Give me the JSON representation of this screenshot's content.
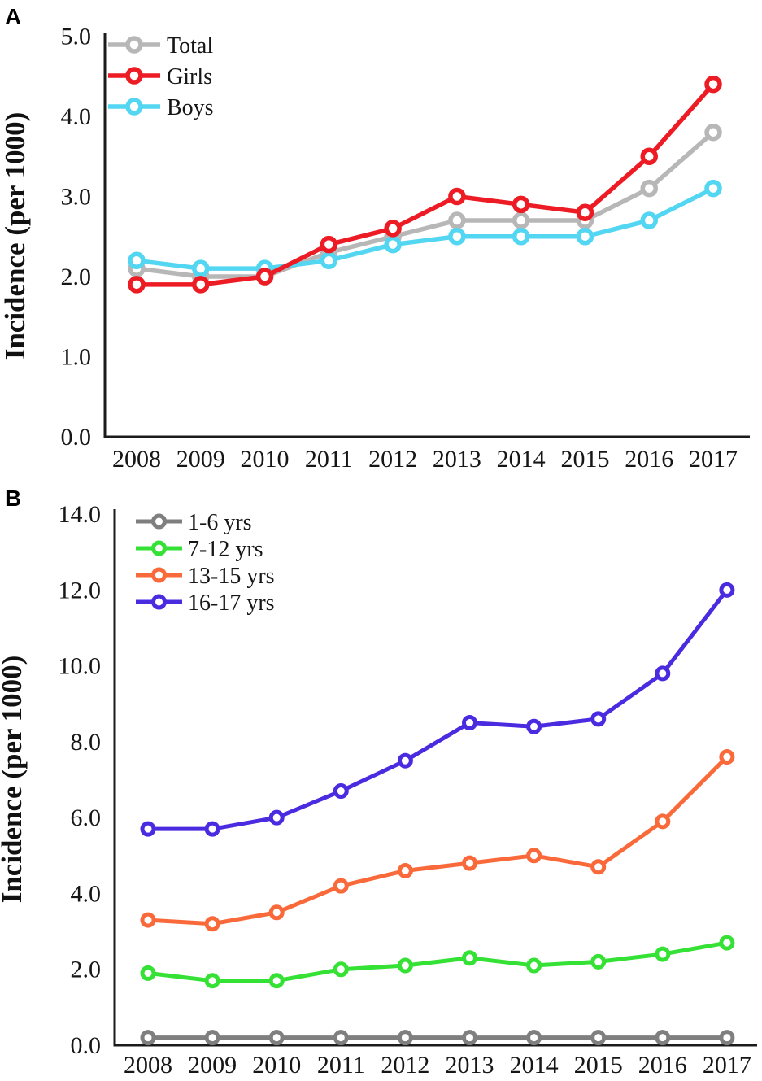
{
  "figure": {
    "panel_a": {
      "label": "A"
    },
    "panel_b": {
      "label": "B"
    }
  },
  "chart_data": [
    {
      "type": "line",
      "panel": "A",
      "title": "",
      "xlabel": "",
      "ylabel": "Incidence (per 1000)",
      "ylim": [
        0.0,
        5.0
      ],
      "ytick_step": 1.0,
      "ytick_values": [
        0,
        1,
        2,
        3,
        4,
        5
      ],
      "ytick_labels": [
        "0.0",
        "1.0",
        "2.0",
        "3.0",
        "4.0",
        "5.0"
      ],
      "categories": [
        "2008",
        "2009",
        "2010",
        "2011",
        "2012",
        "2013",
        "2014",
        "2015",
        "2016",
        "2017"
      ],
      "grid": false,
      "legend_position": "top-left",
      "marker": "open-circle",
      "series": [
        {
          "name": "Total",
          "color": "#b7b7b7",
          "values": [
            2.1,
            2.0,
            2.0,
            2.3,
            2.5,
            2.7,
            2.7,
            2.7,
            3.1,
            3.8
          ]
        },
        {
          "name": "Girls",
          "color": "#ec1b24",
          "values": [
            1.9,
            1.9,
            2.0,
            2.4,
            2.6,
            3.0,
            2.9,
            2.8,
            3.5,
            4.4
          ]
        },
        {
          "name": "Boys",
          "color": "#53d6f1",
          "values": [
            2.2,
            2.1,
            2.1,
            2.2,
            2.4,
            2.5,
            2.5,
            2.5,
            2.7,
            3.1
          ]
        }
      ]
    },
    {
      "type": "line",
      "panel": "B",
      "title": "",
      "xlabel": "",
      "ylabel": "Incidence (per 1000)",
      "ylim": [
        0.0,
        14.0
      ],
      "ytick_step": 2.0,
      "ytick_values": [
        0,
        2,
        4,
        6,
        8,
        10,
        12,
        14
      ],
      "ytick_labels": [
        "0.0",
        "2.0",
        "4.0",
        "6.0",
        "8.0",
        "10.0",
        "12.0",
        "14.0"
      ],
      "categories": [
        "2008",
        "2009",
        "2010",
        "2011",
        "2012",
        "2013",
        "2014",
        "2015",
        "2016",
        "2017"
      ],
      "grid": false,
      "legend_position": "top-left",
      "marker": "open-circle",
      "series": [
        {
          "name": "1-6 yrs",
          "color": "#7f7f7f",
          "values": [
            0.2,
            0.2,
            0.2,
            0.2,
            0.2,
            0.2,
            0.2,
            0.2,
            0.2,
            0.2
          ]
        },
        {
          "name": "7-12 yrs",
          "color": "#35e135",
          "values": [
            1.9,
            1.7,
            1.7,
            2.0,
            2.1,
            2.3,
            2.1,
            2.2,
            2.4,
            2.7
          ]
        },
        {
          "name": "13-15 yrs",
          "color": "#f9693a",
          "values": [
            3.3,
            3.2,
            3.5,
            4.2,
            4.6,
            4.8,
            5.0,
            4.7,
            5.9,
            7.6
          ]
        },
        {
          "name": "16-17 yrs",
          "color": "#4b2be0",
          "values": [
            5.7,
            5.7,
            6.0,
            6.7,
            7.5,
            8.5,
            8.4,
            8.6,
            9.8,
            12.0
          ]
        }
      ]
    }
  ]
}
